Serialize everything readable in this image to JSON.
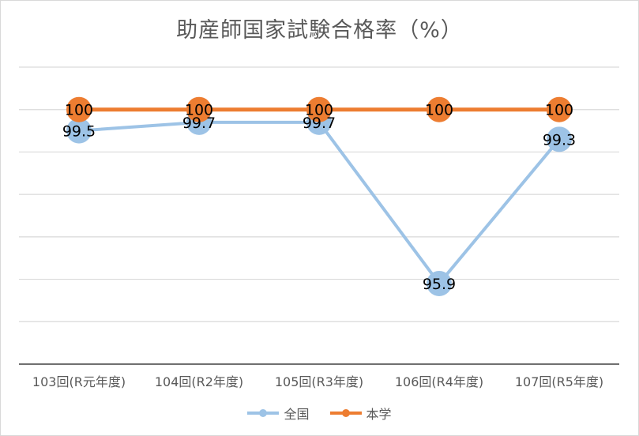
{
  "chart_data": {
    "type": "line",
    "title": "助産師国家試験合格率（%）",
    "categories": [
      "103回(R元年度)",
      "104回(R2年度)",
      "105回(R3年度)",
      "106回(R4年度)",
      "107回(R5年度)"
    ],
    "series": [
      {
        "name": "全国",
        "values": [
          99.5,
          99.7,
          99.7,
          95.9,
          99.3
        ],
        "color": "#9dc3e6",
        "labels": [
          "99.5",
          "99.7",
          "99.7",
          "95.9",
          "99.3"
        ]
      },
      {
        "name": "本学",
        "values": [
          100,
          100,
          100,
          100,
          100
        ],
        "color": "#ed7d31",
        "labels": [
          "100",
          "100",
          "100",
          "100",
          "100"
        ]
      }
    ],
    "ylim": [
      94,
      101
    ],
    "y_gridlines": [
      95,
      96,
      97,
      98,
      99,
      100,
      101
    ],
    "grid": true,
    "legend_position": "bottom",
    "xlabel": "",
    "ylabel": ""
  }
}
